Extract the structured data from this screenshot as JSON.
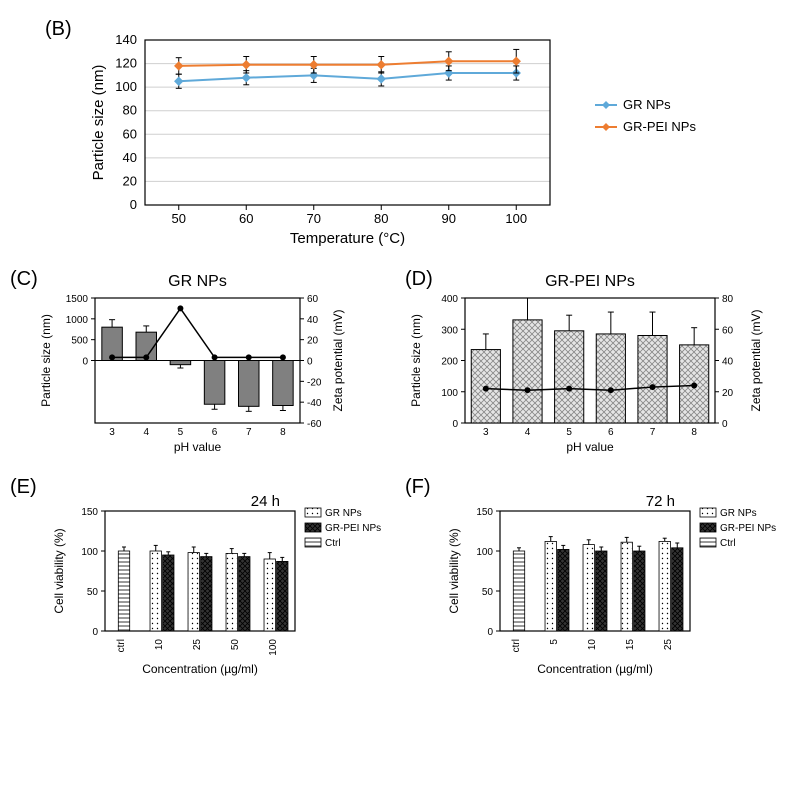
{
  "colors": {
    "bg": "#ffffff",
    "axis": "#000000",
    "grid": "#cfcfcf",
    "text": "#000000",
    "gr": "#5fa9d9",
    "grpei": "#ed7d31",
    "gr_marker": "#4a90c2",
    "grpei_marker": "#d96a1a",
    "bar_c_fill": "#808080",
    "bar_c_stroke": "#000000",
    "line_black": "#000000",
    "bar_gr_fill": "#ffffff",
    "bar_grpei_fill": "#3a3a3a",
    "bar_ctrl_fill": "#ffffff"
  },
  "panelB": {
    "label": "(B)",
    "type": "line",
    "xlabel": "Temperature (°C)",
    "ylabel": "Particle size (nm)",
    "xticks": [
      50,
      60,
      70,
      80,
      90,
      100
    ],
    "yticks": [
      0,
      20,
      40,
      60,
      80,
      100,
      120,
      140
    ],
    "ylim": [
      0,
      140
    ],
    "series": [
      {
        "name": "GR NPs",
        "color": "#5fa9d9",
        "y": [
          105,
          108,
          110,
          107,
          112,
          112
        ],
        "err": [
          6,
          6,
          6,
          6,
          6,
          6
        ]
      },
      {
        "name": "GR-PEI NPs",
        "color": "#ed7d31",
        "y": [
          118,
          119,
          119,
          119,
          122,
          122
        ],
        "err": [
          7,
          7,
          7,
          7,
          8,
          10
        ]
      }
    ],
    "legend": [
      "GR NPs",
      "GR-PEI NPs"
    ]
  },
  "panelC": {
    "label": "(C)",
    "title": "GR NPs",
    "type": "bar+line",
    "xlabel": "pH value",
    "ylabel_left": "Particle size (nm)",
    "ylabel_right": "Zeta potential (mV)",
    "xticks": [
      "3",
      "4",
      "5",
      "6",
      "7",
      "8"
    ],
    "yl_ticks": [
      0,
      500,
      1000,
      1500
    ],
    "yr_ticks": [
      -60,
      -40,
      -20,
      0,
      20,
      40,
      60
    ],
    "bars": {
      "values": [
        800,
        680,
        -100,
        -1050,
        -1100,
        -1080
      ],
      "err": [
        180,
        150,
        80,
        120,
        120,
        120
      ]
    },
    "line": {
      "values": [
        3,
        3,
        50,
        3,
        3,
        3
      ]
    }
  },
  "panelD": {
    "label": "(D)",
    "title": "GR-PEI NPs",
    "type": "bar+line",
    "xlabel": "pH value",
    "ylabel_left": "Particle size (nm)",
    "ylabel_right": "Zeta potential (mV)",
    "xticks": [
      "3",
      "4",
      "5",
      "6",
      "7",
      "8"
    ],
    "yl_ticks": [
      0,
      100,
      200,
      300,
      400
    ],
    "yr_ticks": [
      0,
      20,
      40,
      60,
      80
    ],
    "bars": {
      "values": [
        235,
        330,
        295,
        285,
        280,
        250
      ],
      "err": [
        50,
        70,
        50,
        70,
        75,
        55
      ]
    },
    "line": {
      "values": [
        22,
        21,
        22,
        21,
        23,
        24
      ]
    }
  },
  "panelE": {
    "label": "(E)",
    "title": "24 h",
    "type": "grouped-bar",
    "xlabel": "Concentration (µg/ml)",
    "ylabel": "Cell viability (%)",
    "xticks": [
      "ctrl",
      "10",
      "25",
      "50",
      "100"
    ],
    "yticks": [
      0,
      50,
      100,
      150
    ],
    "series": [
      {
        "name": "GR NPs",
        "values": [
          null,
          100,
          98,
          97,
          90
        ],
        "err": [
          0,
          7,
          7,
          6,
          8
        ]
      },
      {
        "name": "GR-PEI NPs",
        "values": [
          null,
          95,
          93,
          93,
          87
        ],
        "err": [
          0,
          4,
          4,
          4,
          5
        ]
      },
      {
        "name": "Ctrl",
        "values": [
          100,
          null,
          null,
          null,
          null
        ],
        "err": [
          5,
          0,
          0,
          0,
          0
        ]
      }
    ],
    "legend": [
      "GR NPs",
      "GR-PEI NPs",
      "Ctrl"
    ]
  },
  "panelF": {
    "label": "(F)",
    "title": "72 h",
    "type": "grouped-bar",
    "xlabel": "Concentration (µg/ml)",
    "ylabel": "Cell viability (%)",
    "xticks": [
      "ctrl",
      "5",
      "10",
      "15",
      "25"
    ],
    "yticks": [
      0,
      50,
      100,
      150
    ],
    "series": [
      {
        "name": "GR NPs",
        "values": [
          null,
          112,
          108,
          111,
          112
        ],
        "err": [
          0,
          6,
          6,
          6,
          4
        ]
      },
      {
        "name": "GR-PEI NPs",
        "values": [
          null,
          102,
          100,
          100,
          104
        ],
        "err": [
          0,
          5,
          5,
          6,
          6
        ]
      },
      {
        "name": "Ctrl",
        "values": [
          100,
          null,
          null,
          null,
          null
        ],
        "err": [
          4,
          0,
          0,
          0,
          0
        ]
      }
    ],
    "legend": [
      "GR NPs",
      "GR-PEI NPs",
      "Ctrl"
    ]
  }
}
